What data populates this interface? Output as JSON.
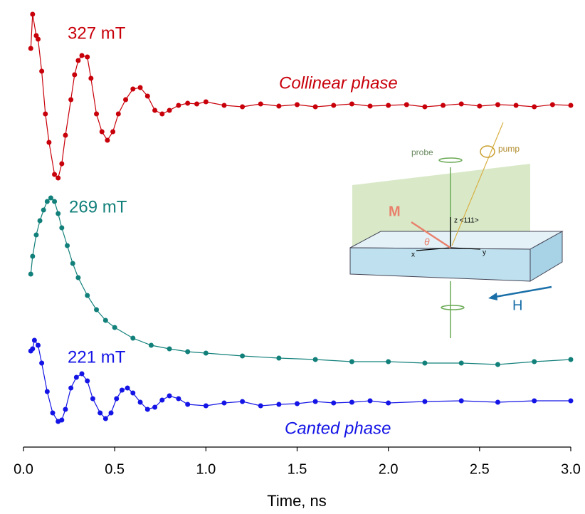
{
  "chart_data": {
    "type": "line",
    "x_label": "Time, ns",
    "xlim": [
      0,
      3.0
    ],
    "xticks": [
      {
        "value": 0,
        "label": "0.0"
      },
      0.5,
      {
        "value": 1,
        "label": "1.0"
      },
      1.5,
      {
        "value": 2,
        "label": "2.0"
      },
      2.5,
      {
        "value": 3,
        "label": "3.0"
      }
    ],
    "ylim": [
      0,
      628
    ],
    "grid": false,
    "annotations": [
      "327 mT",
      "269 mT",
      "221 mT",
      "Collinear phase",
      "Canted phase"
    ],
    "series": [
      {
        "name": "327 mT",
        "color": "#c8000a",
        "x": [
          0.04,
          0.05,
          0.07,
          0.08,
          0.1,
          0.12,
          0.14,
          0.17,
          0.19,
          0.21,
          0.23,
          0.26,
          0.28,
          0.3,
          0.32,
          0.35,
          0.37,
          0.4,
          0.43,
          0.46,
          0.49,
          0.52,
          0.56,
          0.6,
          0.64,
          0.68,
          0.72,
          0.76,
          0.8,
          0.85,
          0.9,
          0.95,
          1.0,
          1.1,
          1.2,
          1.3,
          1.4,
          1.5,
          1.6,
          1.7,
          1.8,
          1.9,
          2.0,
          2.1,
          2.2,
          2.3,
          2.4,
          2.5,
          2.6,
          2.7,
          2.8,
          2.9,
          3.0
        ],
        "values": [
          560,
          608,
          578,
          573,
          528,
          468,
          428,
          383,
          378,
          398,
          438,
          488,
          523,
          543,
          550,
          548,
          518,
          468,
          443,
          431,
          443,
          468,
          488,
          503,
          505,
          493,
          473,
          468,
          473,
          480,
          483,
          482,
          485,
          480,
          478,
          482,
          479,
          481,
          478,
          480,
          482,
          479,
          480,
          481,
          478,
          480,
          482,
          479,
          481,
          480,
          478,
          481,
          480
        ]
      },
      {
        "name": "269 mT",
        "color": "#12807a",
        "x": [
          0.04,
          0.05,
          0.07,
          0.09,
          0.11,
          0.13,
          0.15,
          0.17,
          0.19,
          0.21,
          0.24,
          0.27,
          0.3,
          0.35,
          0.4,
          0.45,
          0.5,
          0.6,
          0.7,
          0.8,
          0.9,
          1.0,
          1.2,
          1.4,
          1.6,
          1.8,
          2.0,
          2.2,
          2.4,
          2.6,
          2.8,
          3.0
        ],
        "values": [
          243,
          268,
          298,
          318,
          333,
          345,
          350,
          345,
          328,
          308,
          283,
          258,
          238,
          213,
          193,
          178,
          168,
          153,
          143,
          138,
          134,
          132,
          128,
          125,
          123,
          120,
          120,
          118,
          118,
          116,
          120,
          123
        ]
      },
      {
        "name": "221 mT",
        "color": "#1414e6",
        "x": [
          0.04,
          0.05,
          0.06,
          0.08,
          0.1,
          0.13,
          0.16,
          0.19,
          0.21,
          0.23,
          0.26,
          0.29,
          0.32,
          0.35,
          0.38,
          0.42,
          0.45,
          0.48,
          0.51,
          0.54,
          0.57,
          0.6,
          0.64,
          0.68,
          0.72,
          0.76,
          0.8,
          0.85,
          0.9,
          1.0,
          1.1,
          1.2,
          1.3,
          1.4,
          1.5,
          1.6,
          1.7,
          1.8,
          1.9,
          2.0,
          2.2,
          2.4,
          2.6,
          2.8,
          3.0
        ],
        "values": [
          135,
          138,
          150,
          143,
          118,
          78,
          48,
          36,
          38,
          53,
          83,
          98,
          103,
          93,
          68,
          48,
          40,
          48,
          68,
          80,
          83,
          76,
          63,
          53,
          56,
          66,
          72,
          68,
          60,
          58,
          62,
          64,
          58,
          60,
          61,
          64,
          62,
          63,
          65,
          62,
          64,
          65,
          63,
          65,
          65
        ]
      }
    ]
  },
  "inset": {
    "probe": "probe",
    "pump": "pump",
    "m": "M",
    "z": "z <111>",
    "x": "x",
    "y": "y",
    "theta": "θ",
    "h": "H"
  }
}
